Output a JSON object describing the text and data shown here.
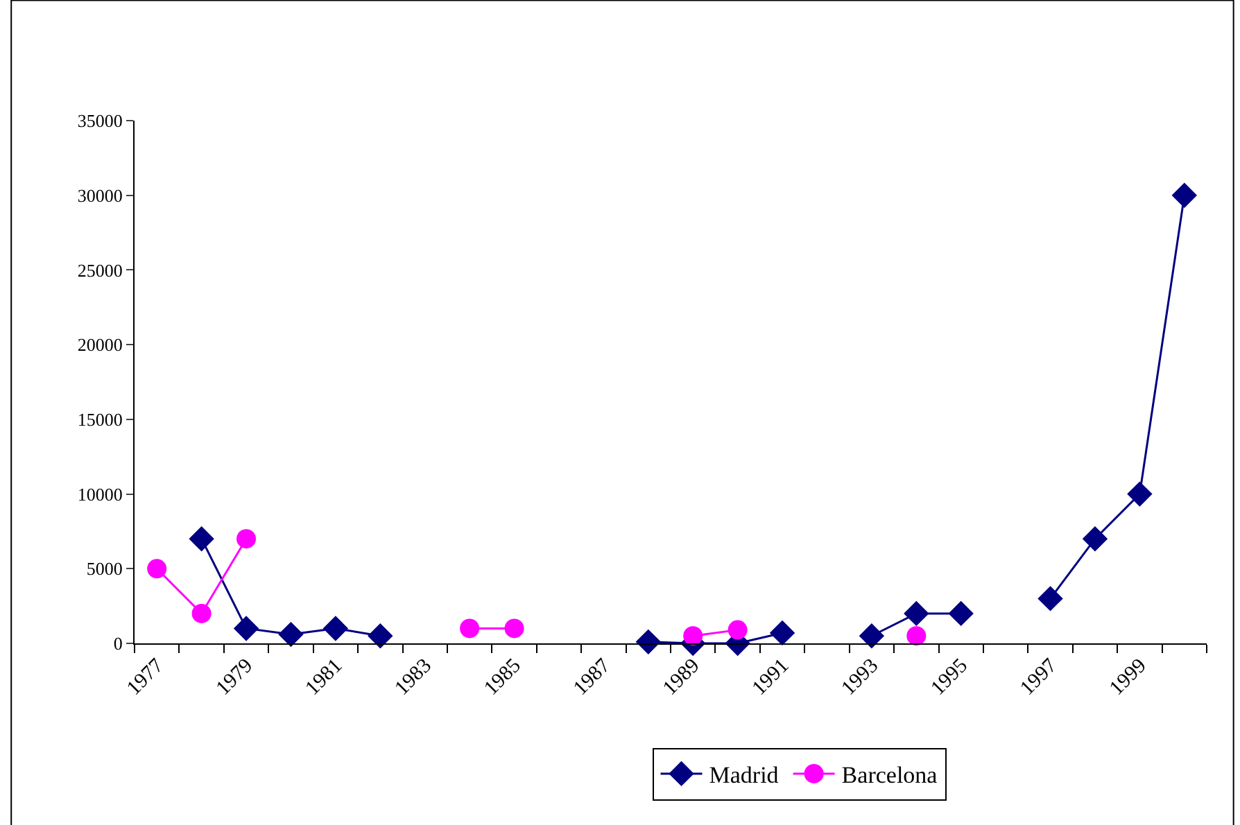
{
  "chart_data": {
    "type": "line",
    "categories": [
      "1977",
      null,
      "1979",
      null,
      "1981",
      null,
      "1983",
      null,
      "1985",
      null,
      "1987",
      null,
      "1989",
      null,
      "1991",
      null,
      "1993",
      null,
      "1995",
      null,
      "1997",
      null,
      "1999",
      null
    ],
    "series": [
      {
        "name": "Madrid",
        "color": "#000080",
        "marker": "diamond",
        "values": [
          null,
          7000,
          1000,
          600,
          1000,
          500,
          null,
          null,
          null,
          null,
          null,
          100,
          0,
          0,
          700,
          null,
          500,
          2000,
          2000,
          null,
          3000,
          7000,
          10000,
          30000
        ]
      },
      {
        "name": "Barcelona",
        "color": "#ff00ff",
        "marker": "circle",
        "values": [
          5000,
          2000,
          7000,
          null,
          null,
          null,
          null,
          1000,
          1000,
          null,
          null,
          null,
          500,
          900,
          null,
          null,
          null,
          500,
          null,
          null,
          null,
          null,
          null,
          null
        ]
      }
    ],
    "ylim": [
      0,
      35000
    ],
    "yticks": [
      0,
      5000,
      10000,
      15000,
      20000,
      25000,
      30000,
      35000
    ],
    "grid": false,
    "legend": "bottom",
    "line_style": "solid"
  }
}
